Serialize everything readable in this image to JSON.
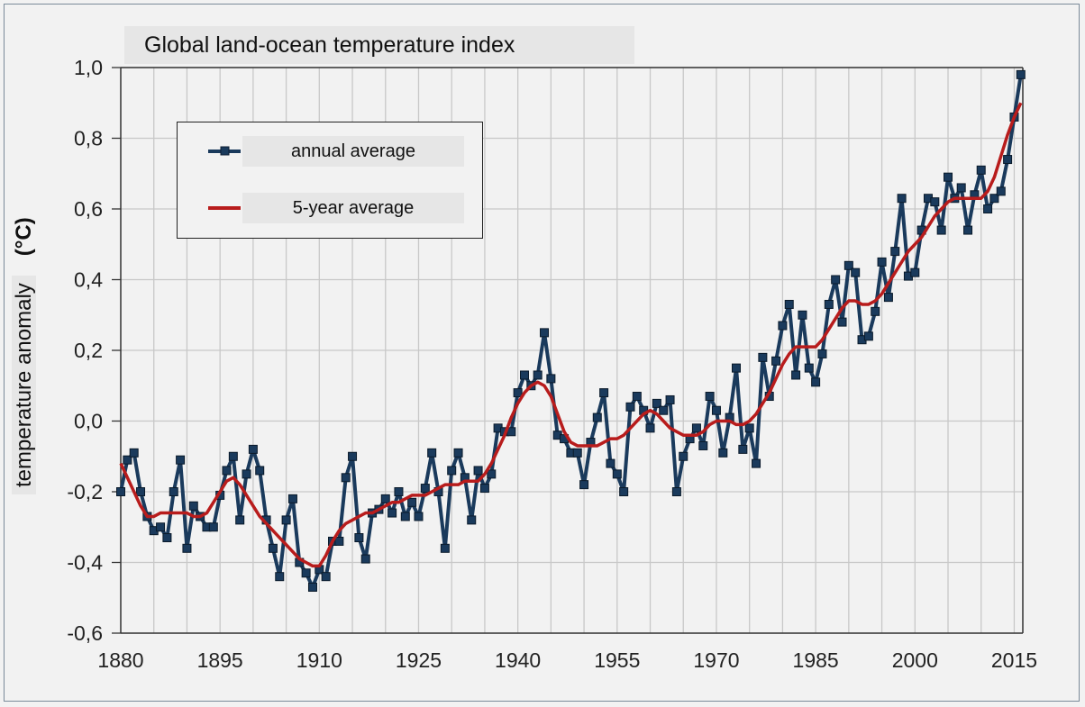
{
  "chart_data": {
    "type": "line",
    "title": "Global land-ocean temperature index",
    "xlabel": "",
    "ylabel": "temperature anomaly",
    "ylabel_unit": "(°C)",
    "xlim": [
      1880,
      2016
    ],
    "ylim": [
      -0.6,
      1.0
    ],
    "xticks": [
      "1880",
      "1895",
      "1910",
      "1925",
      "1940",
      "1955",
      "1970",
      "1985",
      "2000",
      "2015"
    ],
    "yticks": [
      "1,0",
      "0,8",
      "0,6",
      "0,4",
      "0,2",
      "0,0",
      "-0,2",
      "-0,4",
      "-0,6"
    ],
    "grid": true,
    "legend_position": "top-left",
    "series": [
      {
        "name": "annual average",
        "color": "#1a3a5c",
        "marker": "square",
        "start_year": 1880,
        "values": [
          -0.2,
          -0.11,
          -0.09,
          -0.2,
          -0.27,
          -0.31,
          -0.3,
          -0.33,
          -0.2,
          -0.11,
          -0.36,
          -0.24,
          -0.27,
          -0.3,
          -0.3,
          -0.21,
          -0.14,
          -0.1,
          -0.28,
          -0.15,
          -0.08,
          -0.14,
          -0.28,
          -0.36,
          -0.44,
          -0.28,
          -0.22,
          -0.4,
          -0.43,
          -0.47,
          -0.42,
          -0.44,
          -0.34,
          -0.34,
          -0.16,
          -0.1,
          -0.33,
          -0.39,
          -0.26,
          -0.25,
          -0.22,
          -0.26,
          -0.2,
          -0.27,
          -0.23,
          -0.27,
          -0.19,
          -0.09,
          -0.2,
          -0.36,
          -0.14,
          -0.09,
          -0.16,
          -0.28,
          -0.14,
          -0.19,
          -0.15,
          -0.02,
          -0.03,
          -0.03,
          0.08,
          0.13,
          0.1,
          0.13,
          0.25,
          0.12,
          -0.04,
          -0.05,
          -0.09,
          -0.09,
          -0.18,
          -0.06,
          0.01,
          0.08,
          -0.12,
          -0.15,
          -0.2,
          0.04,
          0.07,
          0.03,
          -0.02,
          0.05,
          0.03,
          0.06,
          -0.2,
          -0.1,
          -0.05,
          -0.02,
          -0.07,
          0.07,
          0.03,
          -0.09,
          0.01,
          0.15,
          -0.08,
          -0.02,
          -0.12,
          0.18,
          0.07,
          0.17,
          0.27,
          0.33,
          0.13,
          0.3,
          0.15,
          0.11,
          0.19,
          0.33,
          0.4,
          0.28,
          0.44,
          0.42,
          0.23,
          0.24,
          0.31,
          0.45,
          0.35,
          0.48,
          0.63,
          0.41,
          0.42,
          0.54,
          0.63,
          0.62,
          0.54,
          0.69,
          0.63,
          0.66,
          0.54,
          0.64,
          0.71,
          0.6,
          0.63,
          0.65,
          0.74,
          0.86,
          0.98
        ]
      },
      {
        "name": "5-year average",
        "color": "#b81c1c",
        "start_year": 1880,
        "values": [
          -0.12,
          -0.16,
          -0.2,
          -0.24,
          -0.27,
          -0.27,
          -0.26,
          -0.26,
          -0.26,
          -0.26,
          -0.26,
          -0.27,
          -0.27,
          -0.26,
          -0.23,
          -0.2,
          -0.17,
          -0.16,
          -0.18,
          -0.21,
          -0.24,
          -0.27,
          -0.29,
          -0.31,
          -0.33,
          -0.35,
          -0.37,
          -0.39,
          -0.4,
          -0.41,
          -0.41,
          -0.38,
          -0.34,
          -0.31,
          -0.29,
          -0.28,
          -0.27,
          -0.26,
          -0.26,
          -0.25,
          -0.24,
          -0.23,
          -0.23,
          -0.22,
          -0.21,
          -0.21,
          -0.21,
          -0.2,
          -0.19,
          -0.18,
          -0.18,
          -0.18,
          -0.17,
          -0.17,
          -0.17,
          -0.15,
          -0.12,
          -0.08,
          -0.04,
          0.01,
          0.05,
          0.08,
          0.1,
          0.11,
          0.1,
          0.07,
          0.02,
          -0.03,
          -0.06,
          -0.07,
          -0.07,
          -0.07,
          -0.07,
          -0.06,
          -0.05,
          -0.05,
          -0.04,
          -0.02,
          0.0,
          0.02,
          0.03,
          0.02,
          0.0,
          -0.02,
          -0.03,
          -0.04,
          -0.04,
          -0.04,
          -0.03,
          -0.01,
          0.0,
          0.0,
          0.0,
          -0.01,
          -0.01,
          0.0,
          0.02,
          0.05,
          0.08,
          0.12,
          0.16,
          0.19,
          0.21,
          0.21,
          0.21,
          0.21,
          0.23,
          0.26,
          0.29,
          0.32,
          0.34,
          0.34,
          0.33,
          0.33,
          0.34,
          0.36,
          0.39,
          0.42,
          0.45,
          0.48,
          0.5,
          0.52,
          0.55,
          0.58,
          0.6,
          0.62,
          0.63,
          0.63,
          0.63,
          0.63,
          0.63,
          0.65,
          0.69,
          0.75,
          0.81,
          0.86,
          0.9
        ]
      }
    ]
  }
}
